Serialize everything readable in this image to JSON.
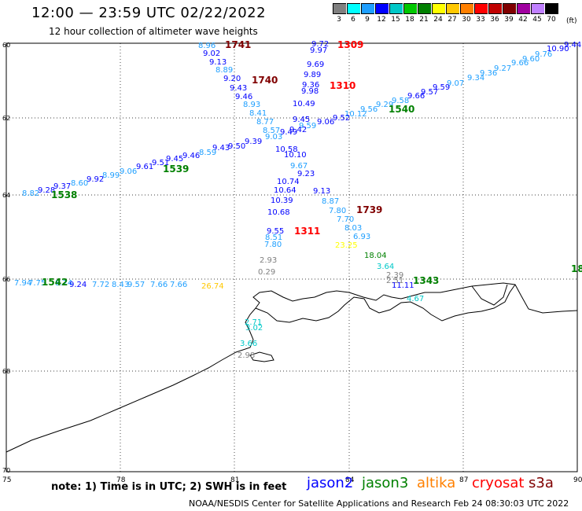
{
  "title": "12:00 — 23:59 UTC 02/22/2022",
  "subtitle": "12 hour collection of altimeter wave heights",
  "scale": {
    "unit": "(ft)",
    "colors": [
      "#808080",
      "#00ffff",
      "#1e9fff",
      "#0000ff",
      "#00c8c8",
      "#00c800",
      "#008000",
      "#ffff00",
      "#ffc800",
      "#ff8000",
      "#ff0000",
      "#c00000",
      "#800000",
      "#a000a0",
      "#c080ff",
      "#000000"
    ],
    "labels": [
      "",
      "3",
      "6",
      "9",
      "12",
      "15",
      "18",
      "21",
      "24",
      "27",
      "30",
      "33",
      "36",
      "39",
      "42",
      "45",
      "70"
    ]
  },
  "axes": {
    "lat_labels": [
      "60",
      "62",
      "64",
      "66",
      "68",
      "70"
    ],
    "lon_labels": [
      "75",
      "78",
      "81",
      "84",
      "87",
      "90"
    ]
  },
  "tracks": [
    {
      "id": "1741",
      "color": "#800000",
      "points": [
        {
          "t": "8.96",
          "c": "#1e9fff"
        },
        {
          "t": "9.02",
          "c": "#0000ff"
        },
        {
          "t": "9.13",
          "c": "#0000ff"
        },
        {
          "t": "8.89",
          "c": "#1e9fff"
        },
        {
          "t": "9.20",
          "c": "#0000ff"
        },
        {
          "t": "9.43",
          "c": "#0000ff"
        },
        {
          "t": "9.46",
          "c": "#0000ff"
        },
        {
          "t": "8.93",
          "c": "#1e9fff"
        },
        {
          "t": "8.41",
          "c": "#1e9fff"
        },
        {
          "t": "8.77",
          "c": "#1e9fff"
        },
        {
          "t": "8.57",
          "c": "#1e9fff"
        }
      ]
    },
    {
      "id": "1740",
      "color": "#800000",
      "points": []
    },
    {
      "id": "1739",
      "color": "#800000",
      "points": [
        {
          "t": "9.13",
          "c": "#0000ff"
        },
        {
          "t": "8.87",
          "c": "#1e9fff"
        },
        {
          "t": "7.80",
          "c": "#1e9fff"
        },
        {
          "t": "7.70",
          "c": "#1e9fff"
        },
        {
          "t": "8.03",
          "c": "#1e9fff"
        },
        {
          "t": "6.93",
          "c": "#1e9fff"
        }
      ]
    },
    {
      "id": "1309",
      "color": "#ff0000",
      "points": [
        {
          "t": "9.72",
          "c": "#0000ff"
        },
        {
          "t": "9.97",
          "c": "#0000ff"
        },
        {
          "t": "9.69",
          "c": "#0000ff"
        },
        {
          "t": "9.89",
          "c": "#0000ff"
        },
        {
          "t": "9.36",
          "c": "#0000ff"
        },
        {
          "t": "9.98",
          "c": "#0000ff"
        },
        {
          "t": "10.49",
          "c": "#0000ff"
        },
        {
          "t": "9.45",
          "c": "#0000ff"
        },
        {
          "t": "9.59",
          "c": "#1e9fff"
        },
        {
          "t": "9.42",
          "c": "#0000ff"
        }
      ]
    },
    {
      "id": "1310",
      "color": "#ff0000",
      "points": [
        {
          "t": "10.58",
          "c": "#0000ff"
        },
        {
          "t": "10.10",
          "c": "#0000ff"
        },
        {
          "t": "9.67",
          "c": "#1e9fff"
        },
        {
          "t": "9.23",
          "c": "#0000ff"
        },
        {
          "t": "10.74",
          "c": "#0000ff"
        },
        {
          "t": "10.64",
          "c": "#0000ff"
        },
        {
          "t": "10.39",
          "c": "#0000ff"
        },
        {
          "t": "10.68",
          "c": "#0000ff"
        }
      ]
    },
    {
      "id": "1311",
      "color": "#ff0000",
      "points": [
        {
          "t": "9.55",
          "c": "#0000ff"
        },
        {
          "t": "8.51",
          "c": "#1e9fff"
        },
        {
          "t": "7.80",
          "c": "#1e9fff"
        },
        {
          "t": "2.93",
          "c": "#808080"
        },
        {
          "t": "0.29",
          "c": "#808080"
        }
      ]
    },
    {
      "id": "1540",
      "color": "#008000",
      "points": [
        {
          "t": "9.44",
          "c": "#0000ff"
        },
        {
          "t": "10.90",
          "c": "#0000ff"
        },
        {
          "t": "9.76",
          "c": "#1e9fff"
        },
        {
          "t": "9.60",
          "c": "#1e9fff"
        },
        {
          "t": "9.66",
          "c": "#1e9fff"
        },
        {
          "t": "9.27",
          "c": "#1e9fff"
        },
        {
          "t": "9.36",
          "c": "#1e9fff"
        },
        {
          "t": "9.34",
          "c": "#1e9fff"
        },
        {
          "t": "9.07",
          "c": "#1e9fff"
        },
        {
          "t": "9.59",
          "c": "#0000ff"
        },
        {
          "t": "9.57",
          "c": "#0000ff"
        },
        {
          "t": "9.66",
          "c": "#0000ff"
        },
        {
          "t": "9.58",
          "c": "#1e9fff"
        },
        {
          "t": "9.29",
          "c": "#1e9fff"
        },
        {
          "t": "9.56",
          "c": "#1e9fff"
        },
        {
          "t": "10.12",
          "c": "#1e9fff"
        },
        {
          "t": "9.52",
          "c": "#0000ff"
        },
        {
          "t": "9.06",
          "c": "#0000ff"
        }
      ]
    },
    {
      "id": "1539",
      "color": "#008000",
      "points": [
        {
          "t": "9.49",
          "c": "#0000ff"
        },
        {
          "t": "9.03",
          "c": "#1e9fff"
        },
        {
          "t": "9.39",
          "c": "#0000ff"
        },
        {
          "t": "9.50",
          "c": "#0000ff"
        },
        {
          "t": "9.43",
          "c": "#0000ff"
        },
        {
          "t": "8.59",
          "c": "#1e9fff"
        },
        {
          "t": "9.46",
          "c": "#0000ff"
        },
        {
          "t": "9.45",
          "c": "#0000ff"
        },
        {
          "t": "9.51",
          "c": "#0000ff"
        },
        {
          "t": "9.61",
          "c": "#0000ff"
        },
        {
          "t": "9.06",
          "c": "#1e9fff"
        },
        {
          "t": "8.99",
          "c": "#1e9fff"
        }
      ]
    },
    {
      "id": "1538",
      "color": "#008000",
      "points": [
        {
          "t": "9.92",
          "c": "#0000ff"
        },
        {
          "t": "8.60",
          "c": "#1e9fff"
        },
        {
          "t": "9.37",
          "c": "#0000ff"
        },
        {
          "t": "9.28",
          "c": "#0000ff"
        },
        {
          "t": "8.82",
          "c": "#1e9fff"
        }
      ]
    },
    {
      "id": "1542",
      "color": "#008000",
      "points": [
        {
          "t": "7.94",
          "c": "#1e9fff"
        },
        {
          "t": "7.75",
          "c": "#1e9fff"
        },
        {
          "t": "8.24",
          "c": "#1e9fff"
        },
        {
          "t": "9.24",
          "c": "#0000ff"
        },
        {
          "t": "7.72",
          "c": "#1e9fff"
        },
        {
          "t": "8.43",
          "c": "#1e9fff"
        },
        {
          "t": "9.57",
          "c": "#1e9fff"
        },
        {
          "t": "7.66",
          "c": "#1e9fff"
        },
        {
          "t": "7.66",
          "c": "#1e9fff"
        },
        {
          "t": "26.74",
          "c": "#ffc800"
        }
      ]
    },
    {
      "id": "1343",
      "color": "#008000",
      "points": [
        {
          "t": "23.25",
          "c": "#ffff00"
        },
        {
          "t": "18.04",
          "c": "#008000"
        },
        {
          "t": "3.64",
          "c": "#00c8c8"
        },
        {
          "t": "2.39",
          "c": "#808080"
        },
        {
          "t": "2.51",
          "c": "#808080"
        },
        {
          "t": "11.11",
          "c": "#0000ff"
        },
        {
          "t": "4.67",
          "c": "#00c8c8"
        },
        {
          "t": "2.71",
          "c": "#00c8c8"
        },
        {
          "t": "3.02",
          "c": "#00c8c8"
        },
        {
          "t": "3.66",
          "c": "#00c8c8"
        },
        {
          "t": "2.98",
          "c": "#808080"
        }
      ]
    },
    {
      "id": "18",
      "color": "#008000",
      "points": []
    }
  ],
  "footer": {
    "note": "note:  1) Time is in UTC;  2) SWH is in feet",
    "legend": [
      {
        "name": "jason2",
        "color": "#0000ff"
      },
      {
        "name": "jason3",
        "color": "#008000"
      },
      {
        "name": "altika",
        "color": "#ff8000"
      },
      {
        "name": "cryosat",
        "color": "#ff0000"
      },
      {
        "name": "s3a",
        "color": "#800000"
      }
    ],
    "credit": "NOAA/NESDIS Center for Satellite Applications and Research    Feb 24 08:30:03 UTC 2022"
  }
}
